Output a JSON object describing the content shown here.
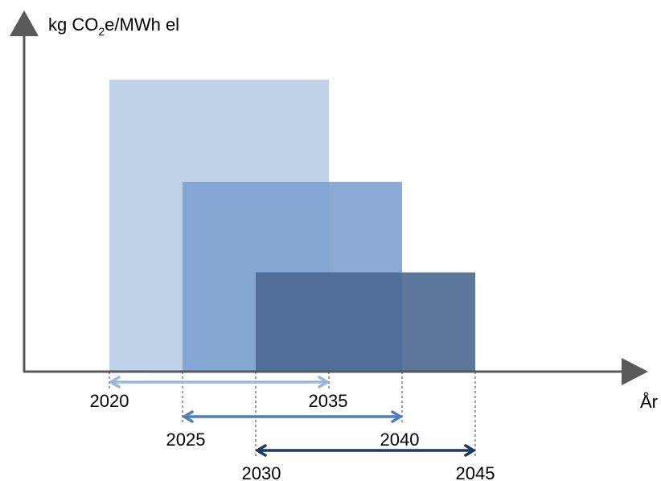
{
  "chart_data": {
    "type": "bar",
    "title": "",
    "ylabel": {
      "prefix": "kg CO",
      "subscript": "2",
      "suffix": "e/MWh el"
    },
    "xlabel": "År",
    "y_ticks_shown": false,
    "grid": false,
    "legend": "none",
    "series": [
      {
        "start": 2020,
        "end": 2035,
        "relative_height": 1.0,
        "color": "#b8cde6",
        "arrow_color": "#9ab6dc",
        "start_label": "2020",
        "end_label": "2035"
      },
      {
        "start": 2025,
        "end": 2040,
        "relative_height": 0.65,
        "color": "#7da1cf",
        "arrow_color": "#4f7fbf",
        "start_label": "2025",
        "end_label": "2040"
      },
      {
        "start": 2030,
        "end": 2045,
        "relative_height": 0.34,
        "color": "#4a6791",
        "arrow_color": "#1f3a5f",
        "start_label": "2030",
        "end_label": "2045"
      }
    ],
    "x_range": [
      2020,
      2045
    ]
  }
}
